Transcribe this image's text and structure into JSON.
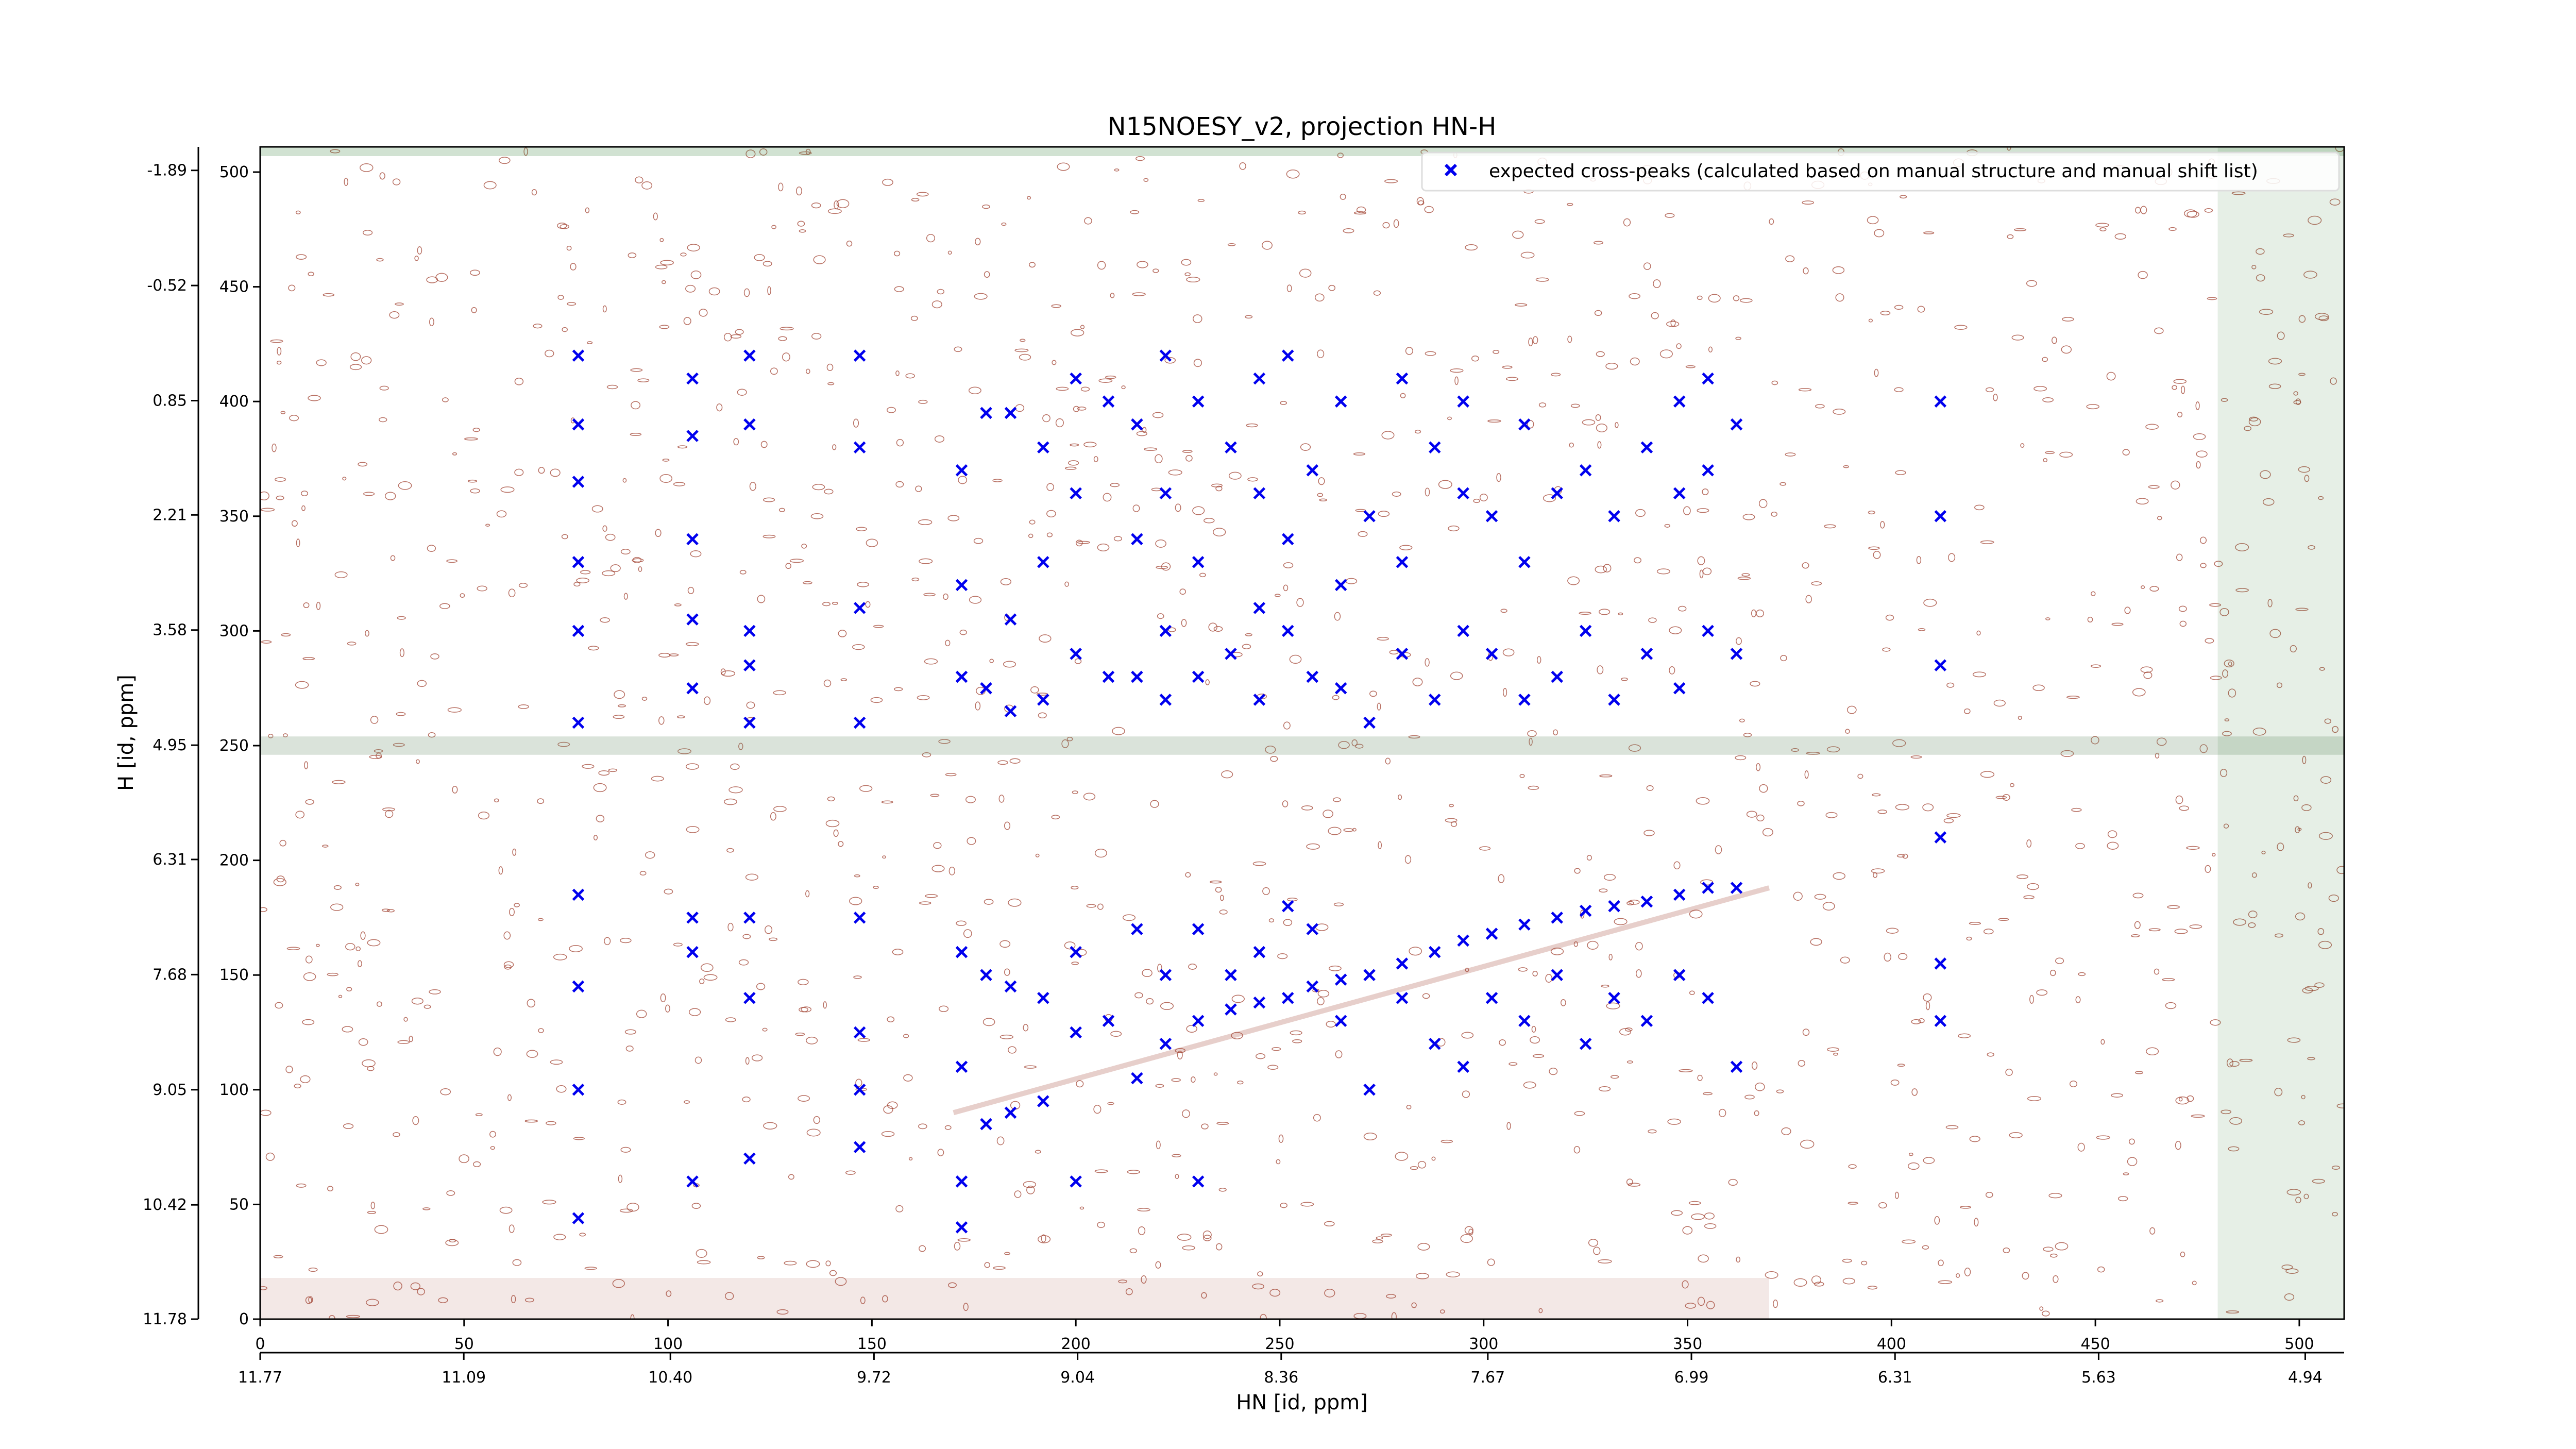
{
  "chart_data": {
    "type": "scatter",
    "title": "N15NOESY_v2, projection HN-H",
    "xlabel": "HN [id, ppm]",
    "ylabel": "H [id, ppm]",
    "x_index_ticks": [
      "0",
      "50",
      "100",
      "150",
      "200",
      "250",
      "300",
      "350",
      "400",
      "450",
      "500"
    ],
    "x_ppm_ticks": [
      "11.77",
      "11.09",
      "10.40",
      "9.72",
      "9.04",
      "8.36",
      "7.67",
      "6.99",
      "6.31",
      "5.63",
      "4.94"
    ],
    "y_index_ticks": [
      "0",
      "50",
      "100",
      "150",
      "200",
      "250",
      "300",
      "350",
      "400",
      "450",
      "500"
    ],
    "y_ppm_ticks": [
      "11.78",
      "10.42",
      "9.05",
      "7.68",
      "6.31",
      "4.95",
      "3.58",
      "2.21",
      "0.85",
      "-0.52",
      "-1.89"
    ],
    "x_index_range": [
      0,
      511
    ],
    "y_index_range": [
      0,
      511
    ],
    "x_ppm_range": [
      11.77,
      4.81
    ],
    "y_ppm_range": [
      11.78,
      -2.17
    ],
    "legend": {
      "placement": "top-right",
      "entries": [
        {
          "label": "expected cross-peaks (calculated based on manual structure and manual shift list)",
          "color": "#0000ee",
          "marker": "x"
        }
      ]
    },
    "series": [
      {
        "name": "expected cross-peaks (calculated based on manual structure and manual shift list)",
        "color": "#0000ee",
        "points": [
          [
            78,
            44
          ],
          [
            78,
            100
          ],
          [
            78,
            145
          ],
          [
            78,
            185
          ],
          [
            78,
            260
          ],
          [
            78,
            300
          ],
          [
            78,
            330
          ],
          [
            78,
            365
          ],
          [
            78,
            390
          ],
          [
            78,
            420
          ],
          [
            106,
            60
          ],
          [
            106,
            160
          ],
          [
            106,
            175
          ],
          [
            106,
            275
          ],
          [
            106,
            305
          ],
          [
            106,
            340
          ],
          [
            106,
            385
          ],
          [
            106,
            410
          ],
          [
            120,
            70
          ],
          [
            120,
            140
          ],
          [
            120,
            175
          ],
          [
            120,
            260
          ],
          [
            120,
            285
          ],
          [
            120,
            300
          ],
          [
            120,
            390
          ],
          [
            120,
            420
          ],
          [
            147,
            75
          ],
          [
            147,
            100
          ],
          [
            147,
            125
          ],
          [
            147,
            175
          ],
          [
            147,
            260
          ],
          [
            147,
            310
          ],
          [
            147,
            380
          ],
          [
            147,
            420
          ],
          [
            172,
            40
          ],
          [
            172,
            60
          ],
          [
            172,
            110
          ],
          [
            172,
            160
          ],
          [
            172,
            280
          ],
          [
            172,
            320
          ],
          [
            172,
            370
          ],
          [
            178,
            85
          ],
          [
            178,
            150
          ],
          [
            178,
            275
          ],
          [
            178,
            395
          ],
          [
            184,
            90
          ],
          [
            184,
            145
          ],
          [
            184,
            265
          ],
          [
            184,
            305
          ],
          [
            184,
            395
          ],
          [
            192,
            95
          ],
          [
            192,
            140
          ],
          [
            192,
            270
          ],
          [
            192,
            330
          ],
          [
            192,
            380
          ],
          [
            200,
            60
          ],
          [
            200,
            125
          ],
          [
            200,
            160
          ],
          [
            200,
            290
          ],
          [
            200,
            360
          ],
          [
            200,
            410
          ],
          [
            208,
            130
          ],
          [
            208,
            280
          ],
          [
            208,
            400
          ],
          [
            215,
            105
          ],
          [
            215,
            170
          ],
          [
            215,
            280
          ],
          [
            215,
            340
          ],
          [
            215,
            390
          ],
          [
            222,
            120
          ],
          [
            222,
            150
          ],
          [
            222,
            270
          ],
          [
            222,
            300
          ],
          [
            222,
            360
          ],
          [
            222,
            420
          ],
          [
            230,
            60
          ],
          [
            230,
            130
          ],
          [
            230,
            170
          ],
          [
            230,
            280
          ],
          [
            230,
            330
          ],
          [
            230,
            400
          ],
          [
            238,
            135
          ],
          [
            238,
            150
          ],
          [
            238,
            290
          ],
          [
            238,
            380
          ],
          [
            245,
            138
          ],
          [
            245,
            160
          ],
          [
            245,
            270
          ],
          [
            245,
            310
          ],
          [
            245,
            360
          ],
          [
            245,
            410
          ],
          [
            252,
            140
          ],
          [
            252,
            180
          ],
          [
            252,
            300
          ],
          [
            252,
            340
          ],
          [
            252,
            420
          ],
          [
            258,
            145
          ],
          [
            258,
            170
          ],
          [
            258,
            280
          ],
          [
            258,
            370
          ],
          [
            265,
            148
          ],
          [
            265,
            130
          ],
          [
            265,
            275
          ],
          [
            265,
            320
          ],
          [
            265,
            400
          ],
          [
            272,
            150
          ],
          [
            272,
            100
          ],
          [
            272,
            260
          ],
          [
            272,
            350
          ],
          [
            280,
            155
          ],
          [
            280,
            140
          ],
          [
            280,
            290
          ],
          [
            280,
            330
          ],
          [
            280,
            410
          ],
          [
            288,
            160
          ],
          [
            288,
            120
          ],
          [
            288,
            270
          ],
          [
            288,
            380
          ],
          [
            295,
            165
          ],
          [
            295,
            110
          ],
          [
            295,
            300
          ],
          [
            295,
            360
          ],
          [
            295,
            400
          ],
          [
            302,
            168
          ],
          [
            302,
            140
          ],
          [
            302,
            290
          ],
          [
            302,
            350
          ],
          [
            310,
            172
          ],
          [
            310,
            130
          ],
          [
            310,
            270
          ],
          [
            310,
            330
          ],
          [
            310,
            390
          ],
          [
            318,
            175
          ],
          [
            318,
            150
          ],
          [
            318,
            280
          ],
          [
            318,
            360
          ],
          [
            325,
            178
          ],
          [
            325,
            120
          ],
          [
            325,
            300
          ],
          [
            325,
            370
          ],
          [
            332,
            180
          ],
          [
            332,
            140
          ],
          [
            332,
            270
          ],
          [
            332,
            350
          ],
          [
            340,
            182
          ],
          [
            340,
            130
          ],
          [
            340,
            290
          ],
          [
            340,
            380
          ],
          [
            348,
            185
          ],
          [
            348,
            150
          ],
          [
            348,
            275
          ],
          [
            348,
            360
          ],
          [
            348,
            400
          ],
          [
            355,
            188
          ],
          [
            355,
            140
          ],
          [
            355,
            300
          ],
          [
            355,
            370
          ],
          [
            355,
            410
          ],
          [
            362,
            188
          ],
          [
            362,
            110
          ],
          [
            362,
            290
          ],
          [
            362,
            390
          ],
          [
            412,
            130
          ],
          [
            412,
            155
          ],
          [
            412,
            210
          ],
          [
            412,
            285
          ],
          [
            412,
            350
          ],
          [
            412,
            400
          ]
        ]
      }
    ]
  }
}
